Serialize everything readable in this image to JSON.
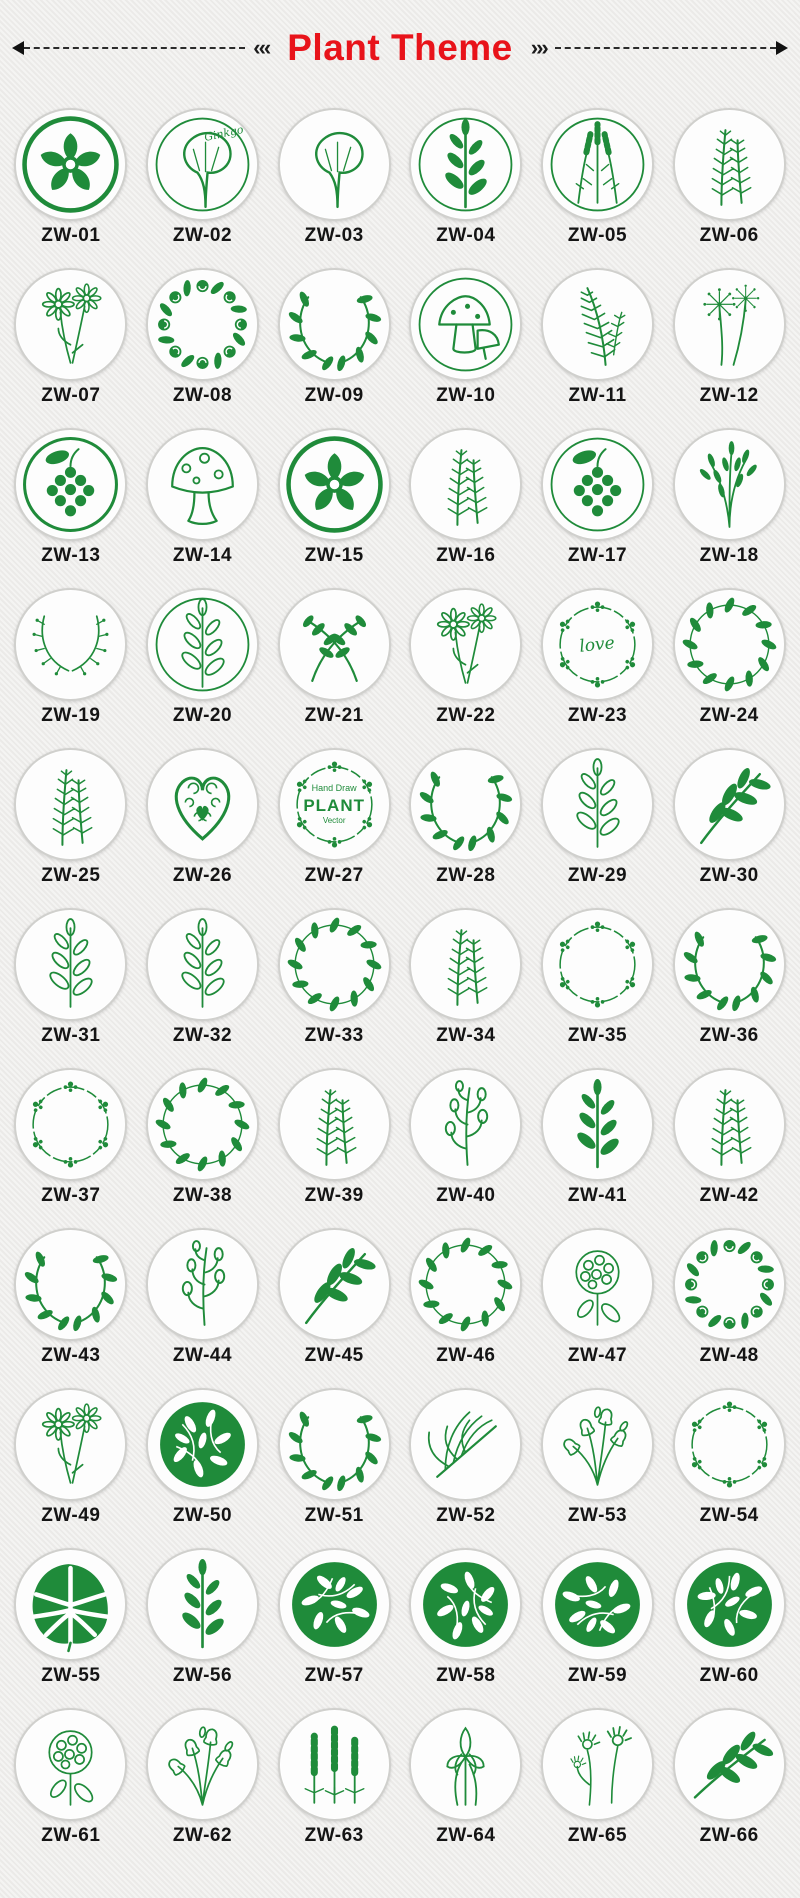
{
  "colors": {
    "background": "#efeeec",
    "stamp_green": "#1f8b3a",
    "title_red": "#e8131a",
    "label_color": "#141414"
  },
  "header": {
    "title": "Plant Theme",
    "left_chevrons": "‹‹‹",
    "right_chevrons": "›››"
  },
  "badges": [
    {
      "label": "ZW-01",
      "icon": "cherry-blossom-icon",
      "ring": "bold"
    },
    {
      "label": "ZW-02",
      "icon": "ginkgo-leaf-icon",
      "ring": "thin",
      "script": "Ginkgo",
      "script_pos": "tr"
    },
    {
      "label": "ZW-03",
      "icon": "ginkgo-leaf-icon"
    },
    {
      "label": "ZW-04",
      "icon": "herb-sprig-icon",
      "ring": "thin"
    },
    {
      "label": "ZW-05",
      "icon": "lavender-icon",
      "ring": "thin"
    },
    {
      "label": "ZW-06",
      "icon": "rosemary-icon"
    },
    {
      "label": "ZW-07",
      "icon": "daisy-icon"
    },
    {
      "label": "ZW-08",
      "icon": "rose-wreath-icon"
    },
    {
      "label": "ZW-09",
      "icon": "laurel-wreath-icon"
    },
    {
      "label": "ZW-10",
      "icon": "mushroom-duo-icon",
      "ring": "thin"
    },
    {
      "label": "ZW-11",
      "icon": "fern-icon"
    },
    {
      "label": "ZW-12",
      "icon": "dandelion-icon"
    },
    {
      "label": "ZW-13",
      "icon": "grape-cluster-icon",
      "ring": "medium"
    },
    {
      "label": "ZW-14",
      "icon": "mushroom-outline-icon"
    },
    {
      "label": "ZW-15",
      "icon": "cherry-blossom-icon",
      "ring": "bold"
    },
    {
      "label": "ZW-16",
      "icon": "rosemary-icon"
    },
    {
      "label": "ZW-17",
      "icon": "grape-cluster-icon",
      "ring": "thin"
    },
    {
      "label": "ZW-18",
      "icon": "willow-catkin-icon"
    },
    {
      "label": "ZW-19",
      "icon": "half-wreath-icon"
    },
    {
      "label": "ZW-20",
      "icon": "herb-sprig-outline-icon",
      "ring": "thin"
    },
    {
      "label": "ZW-21",
      "icon": "crossed-sprigs-icon"
    },
    {
      "label": "ZW-22",
      "icon": "daisy-icon"
    },
    {
      "label": "ZW-23",
      "icon": "floral-wreath-icon",
      "script": "love",
      "script_pos": "c"
    },
    {
      "label": "ZW-24",
      "icon": "leaf-ring-icon"
    },
    {
      "label": "ZW-25",
      "icon": "rosemary-icon"
    },
    {
      "label": "ZW-26",
      "icon": "vine-heart-icon"
    },
    {
      "label": "ZW-27",
      "icon": "floral-wreath-icon",
      "lines": [
        "Hand Draw",
        "PLANT",
        "Vector"
      ]
    },
    {
      "label": "ZW-28",
      "icon": "laurel-wreath-icon"
    },
    {
      "label": "ZW-29",
      "icon": "herb-sprig-outline-icon"
    },
    {
      "label": "ZW-30",
      "icon": "leafy-branch-icon"
    },
    {
      "label": "ZW-31",
      "icon": "herb-sprig-outline-icon"
    },
    {
      "label": "ZW-32",
      "icon": "herb-sprig-outline-icon"
    },
    {
      "label": "ZW-33",
      "icon": "leaf-ring-icon"
    },
    {
      "label": "ZW-34",
      "icon": "rosemary-icon"
    },
    {
      "label": "ZW-35",
      "icon": "floral-wreath-icon"
    },
    {
      "label": "ZW-36",
      "icon": "laurel-wreath-icon"
    },
    {
      "label": "ZW-37",
      "icon": "floral-wreath-icon"
    },
    {
      "label": "ZW-38",
      "icon": "leaf-ring-icon"
    },
    {
      "label": "ZW-39",
      "icon": "rosemary-icon"
    },
    {
      "label": "ZW-40",
      "icon": "eucalyptus-icon"
    },
    {
      "label": "ZW-41",
      "icon": "herb-sprig-icon"
    },
    {
      "label": "ZW-42",
      "icon": "rosemary-icon"
    },
    {
      "label": "ZW-43",
      "icon": "laurel-wreath-icon"
    },
    {
      "label": "ZW-44",
      "icon": "eucalyptus-icon"
    },
    {
      "label": "ZW-45",
      "icon": "leafy-branch-icon"
    },
    {
      "label": "ZW-46",
      "icon": "leaf-ring-icon"
    },
    {
      "label": "ZW-47",
      "icon": "hydrangea-icon"
    },
    {
      "label": "ZW-48",
      "icon": "rose-wreath-icon"
    },
    {
      "label": "ZW-49",
      "icon": "daisy-icon"
    },
    {
      "label": "ZW-50",
      "icon": "leaf-pattern-icon"
    },
    {
      "label": "ZW-51",
      "icon": "laurel-wreath-icon"
    },
    {
      "label": "ZW-52",
      "icon": "palm-frond-icon"
    },
    {
      "label": "ZW-53",
      "icon": "bellflower-icon"
    },
    {
      "label": "ZW-54",
      "icon": "floral-wreath-icon"
    },
    {
      "label": "ZW-55",
      "icon": "monstera-leaf-icon"
    },
    {
      "label": "ZW-56",
      "icon": "herb-sprig-icon"
    },
    {
      "label": "ZW-57",
      "icon": "leaf-pattern-icon",
      "spin": 90
    },
    {
      "label": "ZW-58",
      "icon": "leaf-pattern-icon",
      "spin": 180
    },
    {
      "label": "ZW-59",
      "icon": "leaf-pattern-icon",
      "spin": 270
    },
    {
      "label": "ZW-60",
      "icon": "leaf-pattern-icon",
      "spin": 45
    },
    {
      "label": "ZW-61",
      "icon": "hydrangea-icon"
    },
    {
      "label": "ZW-62",
      "icon": "bellflower-icon"
    },
    {
      "label": "ZW-63",
      "icon": "lupine-icon"
    },
    {
      "label": "ZW-64",
      "icon": "iris-icon"
    },
    {
      "label": "ZW-65",
      "icon": "thistle-icon"
    },
    {
      "label": "ZW-66",
      "icon": "leafy-branch-icon",
      "spin": 10
    }
  ]
}
